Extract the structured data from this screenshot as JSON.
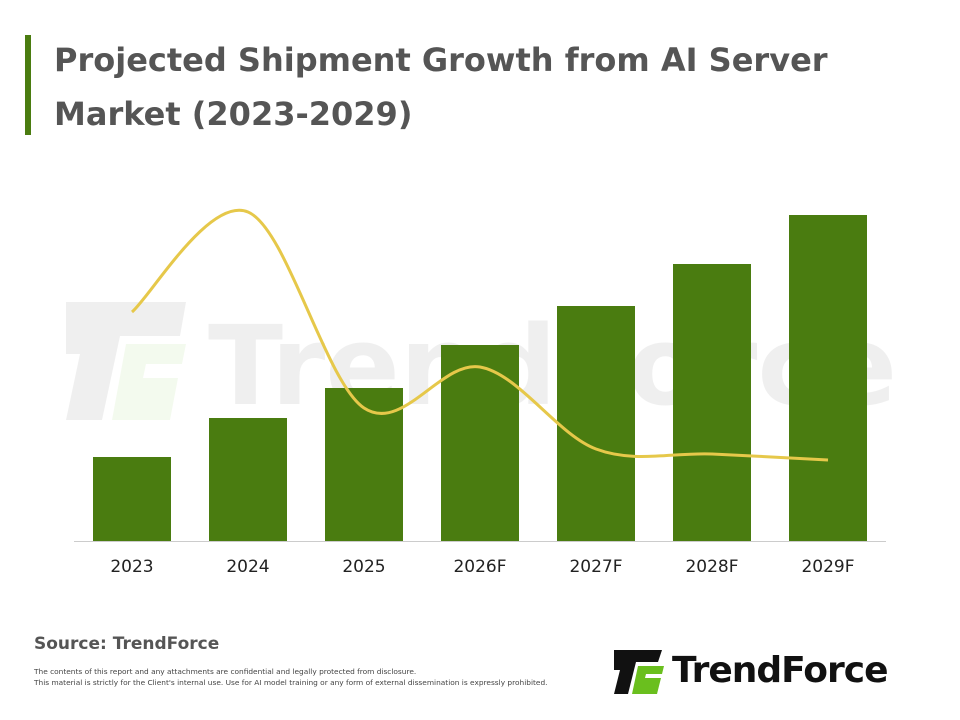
{
  "title": "Projected Shipment Growth from AI Server Market (2023-2029)",
  "watermark": "TrendForce",
  "chart_data": {
    "type": "bar",
    "categories": [
      "2023",
      "2024",
      "2025",
      "2026F",
      "2027F",
      "2028F",
      "2029F"
    ],
    "values": [
      84,
      123,
      153,
      196,
      235,
      277,
      326
    ],
    "line_values": [
      229,
      329,
      133,
      174,
      92,
      87,
      81
    ],
    "ylim": [
      0,
      340
    ],
    "xlabel": "",
    "ylabel": "",
    "grid": false,
    "legend": "none",
    "colors": {
      "bar": "#4a7c10",
      "line": "#e6c84a",
      "axis": "#cccccc"
    }
  },
  "footer": {
    "source": "Source: TrendForce",
    "disclaimer_1": "The contents of this report and any attachments are confidential and legally protected from disclosure.",
    "disclaimer_2": "This material is strictly for the Client's internal use. Use for AI model training or any form of external dissemination is expressly prohibited."
  },
  "logo": {
    "text": "TrendForce",
    "icon": "trendforce-logo-icon",
    "colors": [
      "#111111",
      "#6abf1e"
    ]
  }
}
